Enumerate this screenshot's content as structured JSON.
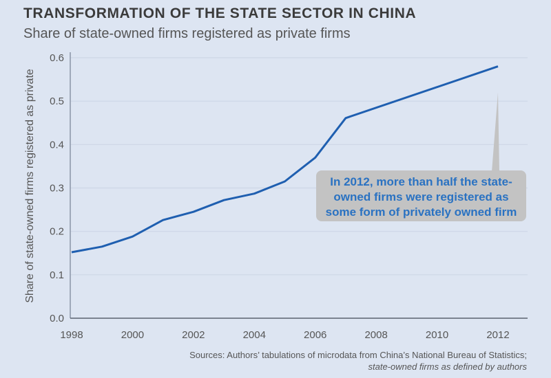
{
  "header": {
    "title": "TRANSFORMATION OF THE STATE SECTOR IN CHINA",
    "subtitle": "Share of state-owned firms registered as private firms"
  },
  "colors": {
    "background": "#dde5f2",
    "line": "#1f5fb0",
    "callout_bg": "#c3c3c3",
    "callout_text": "#2a72c2"
  },
  "chart_data": {
    "type": "line",
    "title": "TRANSFORMATION OF THE STATE SECTOR IN CHINA",
    "subtitle": "Share of state-owned firms registered as private firms",
    "xlabel": "",
    "ylabel": "Share of state-owned firms registered as private",
    "x": [
      1998,
      1999,
      2000,
      2001,
      2002,
      2003,
      2004,
      2005,
      2006,
      2007,
      2012
    ],
    "series": [
      {
        "name": "Share registered as private",
        "values": [
          0.152,
          0.165,
          0.188,
          0.226,
          0.245,
          0.272,
          0.287,
          0.315,
          0.37,
          0.461,
          0.58
        ]
      }
    ],
    "xlim": [
      1998,
      2012
    ],
    "ylim": [
      0.0,
      0.6
    ],
    "xticks": [
      "1998",
      "2000",
      "2002",
      "2004",
      "2006",
      "2008",
      "2010",
      "2012"
    ],
    "yticks": [
      "0.0",
      "0.1",
      "0.2",
      "0.3",
      "0.4",
      "0.5",
      "0.6"
    ],
    "grid": "horizontal",
    "legend": "none",
    "annotation": {
      "lines": [
        "In 2012, more than half the state-",
        "owned firms were registered as",
        "some form of privately owned firm"
      ],
      "points_to_x": 2012,
      "points_to_y": 0.52
    }
  },
  "source": {
    "line1": "Sources: Authors’ tabulations of microdata from China’s National Bureau of Statistics;",
    "line2": "state-owned firms as defined by authors"
  }
}
